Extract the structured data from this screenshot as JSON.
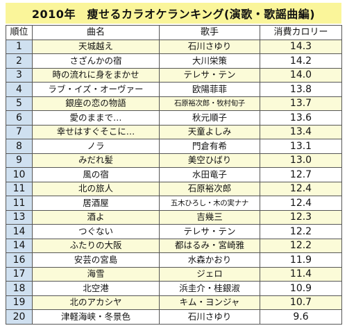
{
  "title": "2010年　痩せるカラオケランキング(演歌・歌謡曲編)",
  "headers": {
    "rank": "順位",
    "song": "曲名",
    "singer": "歌手",
    "calories": "消費カロリー"
  },
  "rows": [
    {
      "rank": "1",
      "song": "天城越え",
      "singer": "石川さゆり",
      "calories": "14.3"
    },
    {
      "rank": "2",
      "song": "さざんかの宿",
      "singer": "大川栄策",
      "calories": "14.2"
    },
    {
      "rank": "3",
      "song": "時の流れに身をまかせ",
      "singer": "テレサ・テン",
      "calories": "14.0"
    },
    {
      "rank": "4",
      "song": "ラブ・イズ・オーヴァー",
      "singer": "欧陽菲菲",
      "calories": "13.8"
    },
    {
      "rank": "5",
      "song": "銀座の恋の物語",
      "singer": "石原裕次郎・牧村旬子",
      "calories": "13.7"
    },
    {
      "rank": "6",
      "song": "愛のままで…",
      "singer": "秋元順子",
      "calories": "13.6"
    },
    {
      "rank": "7",
      "song": "幸せはすぐそこに…",
      "singer": "天童よしみ",
      "calories": "13.4"
    },
    {
      "rank": "8",
      "song": "ノラ",
      "singer": "門倉有希",
      "calories": "13.1"
    },
    {
      "rank": "9",
      "song": "みだれ髪",
      "singer": "美空ひばり",
      "calories": "13.0"
    },
    {
      "rank": "10",
      "song": "風の宿",
      "singer": "水田竜子",
      "calories": "12.7"
    },
    {
      "rank": "11",
      "song": "北の旅人",
      "singer": "石原裕次郎",
      "calories": "12.4"
    },
    {
      "rank": "11",
      "song": "居酒屋",
      "singer": "五木ひろし・木の実ナナ",
      "calories": "12.4"
    },
    {
      "rank": "13",
      "song": "酒よ",
      "singer": "吉幾三",
      "calories": "12.3"
    },
    {
      "rank": "14",
      "song": "つぐない",
      "singer": "テレサ・テン",
      "calories": "12.2"
    },
    {
      "rank": "14",
      "song": "ふたりの大阪",
      "singer": "都はるみ・宮崎雅",
      "calories": "12.2"
    },
    {
      "rank": "16",
      "song": "安芸の宮島",
      "singer": "水森かおり",
      "calories": "11.9"
    },
    {
      "rank": "17",
      "song": "海雪",
      "singer": "ジェロ",
      "calories": "11.4"
    },
    {
      "rank": "18",
      "song": "北空港",
      "singer": "浜圭介・桂銀淑",
      "calories": "10.9"
    },
    {
      "rank": "19",
      "song": "北のアカシヤ",
      "singer": "キム・ヨンジャ",
      "calories": "10.7"
    },
    {
      "rank": "20",
      "song": "津軽海峡・冬景色",
      "singer": "石川さゆり",
      "calories": "9.6"
    }
  ],
  "colors": {
    "title_band": "#faf59a",
    "rank_cell": "#cfe0f0",
    "odd_row": "#fbfbd8",
    "even_row": "#ffffff",
    "grid": "#555555"
  }
}
